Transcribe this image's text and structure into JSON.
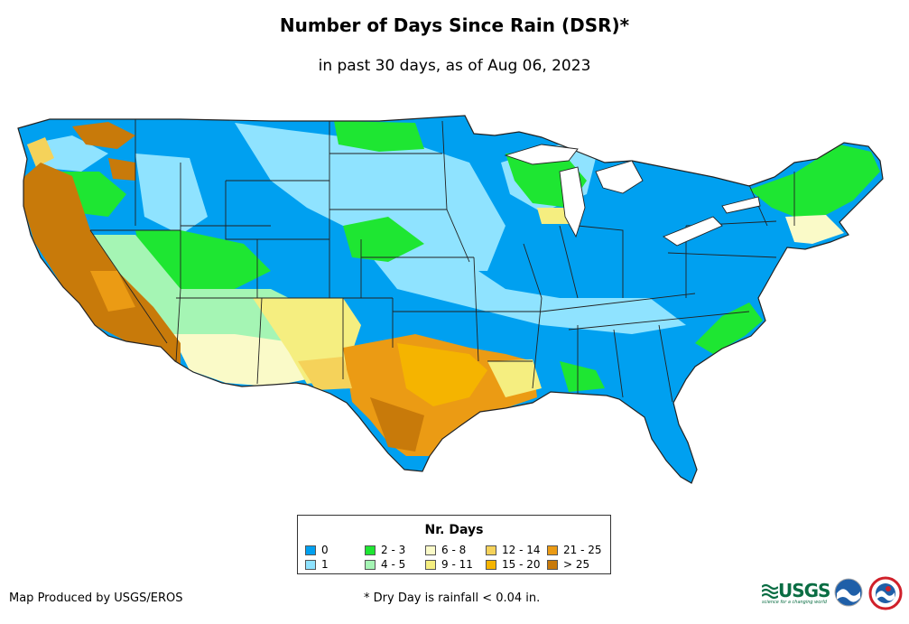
{
  "title": "Number of Days Since Rain (DSR)*",
  "subtitle": "in past 30 days, as of Aug 06, 2023",
  "legend": {
    "title": "Nr. Days",
    "items": [
      {
        "label": "0",
        "color": "#00a0f0"
      },
      {
        "label": "1",
        "color": "#8fe3ff"
      },
      {
        "label": "2 - 3",
        "color": "#1ee632"
      },
      {
        "label": "4 - 5",
        "color": "#a5f5b4"
      },
      {
        "label": "6 - 8",
        "color": "#fafac8"
      },
      {
        "label": "9 - 11",
        "color": "#f5ee80"
      },
      {
        "label": "12 - 14",
        "color": "#f5d25a"
      },
      {
        "label": "15 - 20",
        "color": "#f5b400"
      },
      {
        "label": "21 - 25",
        "color": "#eb9b14"
      },
      {
        "label": "> 25",
        "color": "#c87a0a"
      }
    ]
  },
  "credit": "Map Produced by USGS/EROS",
  "footnote": "* Dry Day is rainfall < 0.04 in.",
  "logos": {
    "usgs": {
      "name": "USGS",
      "tagline": "science for a changing world",
      "color": "#0a6d43"
    },
    "noaa": {
      "name": "noaa",
      "color": "#1f5fa8"
    },
    "nws": {
      "name": "NATIONAL WEATHER SERVICE",
      "color": "#d0202a"
    }
  }
}
